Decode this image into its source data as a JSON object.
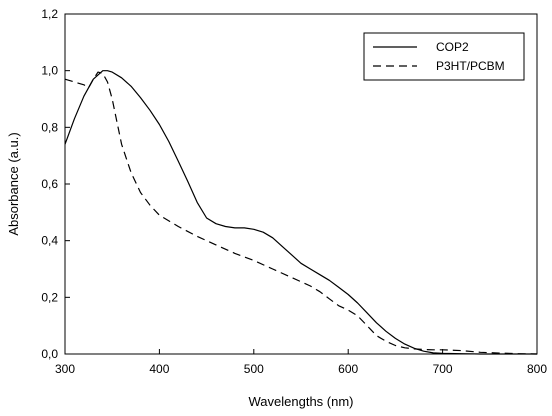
{
  "chart_data": {
    "type": "line",
    "xlabel": "Wavelengths (nm)",
    "ylabel": "Absorbance (a.u.)",
    "xlim": [
      300,
      800
    ],
    "ylim": [
      0.0,
      1.2
    ],
    "xticks": [
      300,
      400,
      500,
      600,
      700,
      800
    ],
    "xtick_labels": [
      "300",
      "400",
      "500",
      "600",
      "700",
      "800"
    ],
    "yticks": [
      0.0,
      0.2,
      0.4,
      0.6,
      0.8,
      1.0,
      1.2
    ],
    "ytick_labels": [
      "0,0",
      "0,2",
      "0,4",
      "0,6",
      "0,8",
      "1,0",
      "1,2"
    ],
    "grid": false,
    "legend_position": "top-right",
    "series": [
      {
        "name": "COP2",
        "style": "solid",
        "color": "#000000",
        "x": [
          300,
          310,
          320,
          330,
          340,
          345,
          350,
          360,
          370,
          380,
          390,
          400,
          410,
          420,
          430,
          440,
          450,
          460,
          470,
          480,
          490,
          500,
          510,
          520,
          530,
          540,
          550,
          560,
          570,
          580,
          590,
          600,
          610,
          620,
          630,
          640,
          650,
          660,
          670,
          680,
          690,
          700,
          720,
          740,
          760,
          780,
          800
        ],
        "y": [
          0.74,
          0.83,
          0.91,
          0.97,
          1.0,
          1.0,
          0.995,
          0.975,
          0.945,
          0.905,
          0.86,
          0.81,
          0.75,
          0.68,
          0.61,
          0.535,
          0.48,
          0.46,
          0.45,
          0.445,
          0.445,
          0.44,
          0.43,
          0.41,
          0.38,
          0.35,
          0.32,
          0.3,
          0.28,
          0.26,
          0.235,
          0.21,
          0.18,
          0.145,
          0.11,
          0.08,
          0.055,
          0.035,
          0.02,
          0.01,
          0.004,
          0.002,
          0.001,
          0.0,
          0.0,
          0.0,
          0.0
        ]
      },
      {
        "name": "P3HT/PCBM",
        "style": "dashed",
        "color": "#000000",
        "x": [
          300,
          310,
          320,
          325,
          330,
          335,
          340,
          345,
          350,
          355,
          360,
          370,
          380,
          390,
          400,
          420,
          440,
          460,
          480,
          500,
          520,
          540,
          560,
          570,
          580,
          590,
          600,
          610,
          620,
          630,
          640,
          650,
          660,
          670,
          680,
          690,
          700,
          720,
          740,
          760,
          780,
          800
        ],
        "y": [
          0.97,
          0.96,
          0.95,
          0.94,
          0.97,
          0.995,
          0.99,
          0.96,
          0.9,
          0.82,
          0.74,
          0.64,
          0.57,
          0.525,
          0.49,
          0.45,
          0.415,
          0.385,
          0.355,
          0.33,
          0.3,
          0.27,
          0.24,
          0.22,
          0.195,
          0.17,
          0.155,
          0.135,
          0.1,
          0.065,
          0.045,
          0.03,
          0.022,
          0.018,
          0.016,
          0.015,
          0.015,
          0.012,
          0.006,
          0.003,
          0.001,
          0.0
        ]
      }
    ]
  }
}
